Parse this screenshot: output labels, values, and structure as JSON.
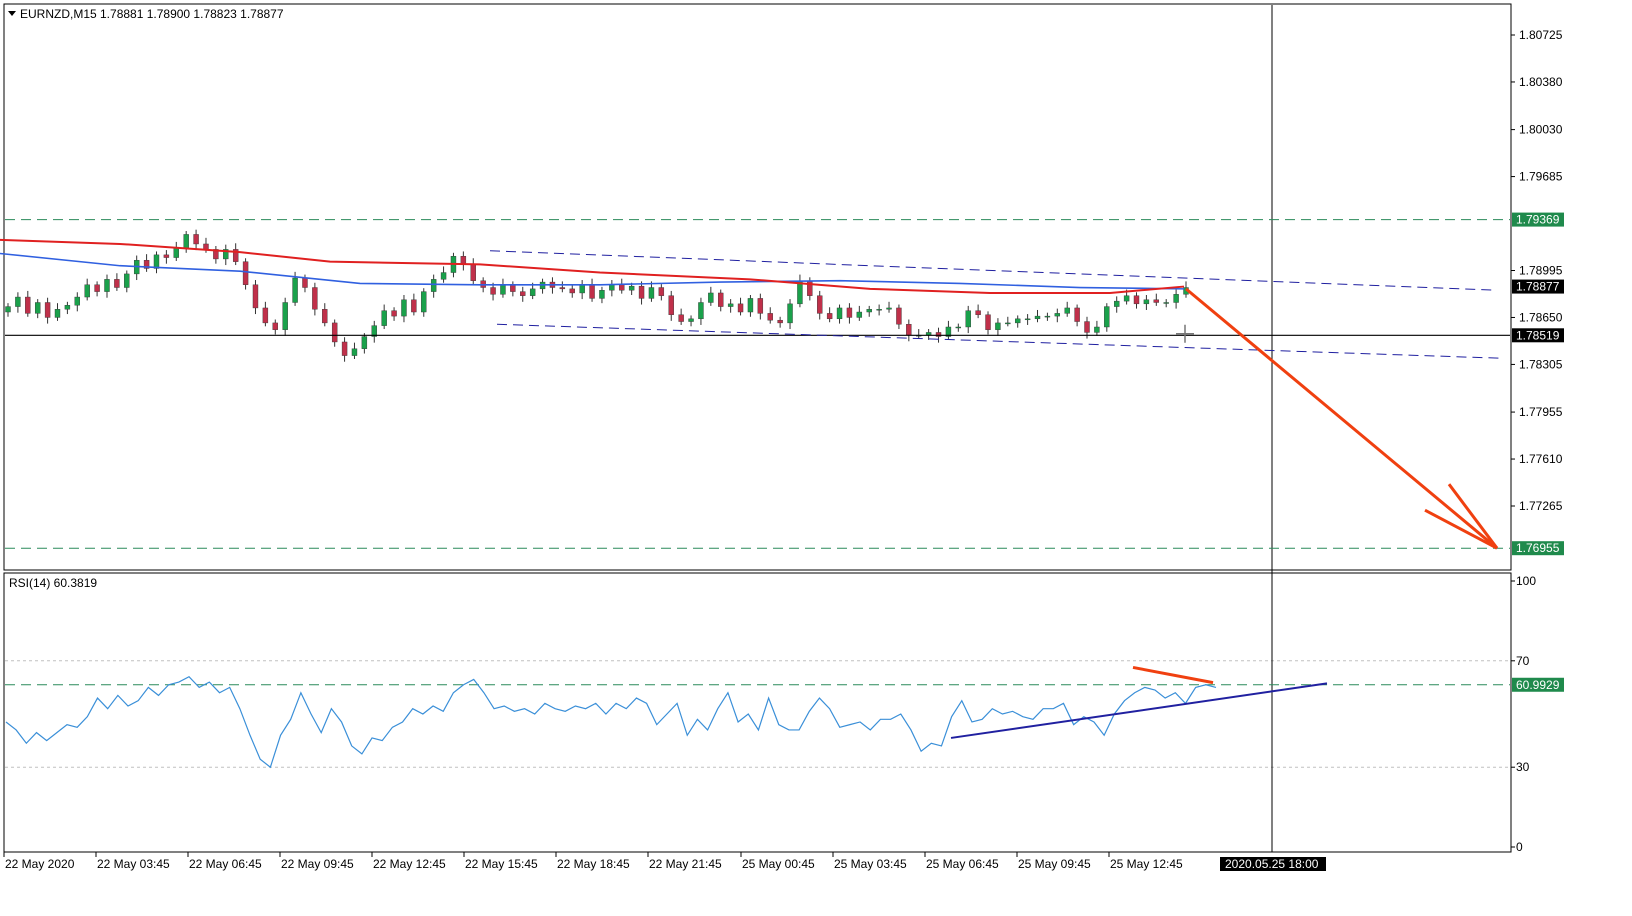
{
  "window": {
    "symbol_header": "EURNZD,M15  1.78881 1.78900 1.78823 1.78877",
    "rsi_header": "RSI(14) 60.3819"
  },
  "colors": {
    "bull_body": "#1aa14b",
    "bear_body": "#c0304a",
    "wick": "#333333",
    "ma_fast": "#e02020",
    "ma_slow": "#3060e0",
    "rsi_line": "#3a8fd8",
    "trend_blue": "#2020a0",
    "arrow": "#f04010",
    "level_green": "#2a8a5a",
    "tag_green_bg": "#1f8a4c",
    "tag_black_bg": "#000000",
    "grid": "#c8c8c8"
  },
  "chart_data": [
    {
      "type": "candlestick",
      "title": "EURNZD,M15",
      "ohlc_last": {
        "open": 1.78881,
        "high": 1.789,
        "low": 1.78823,
        "close": 1.78877
      },
      "y_ticks": [
        1.80725,
        1.8038,
        1.8003,
        1.79685,
        1.78995,
        1.7865,
        1.78305,
        1.77955,
        1.7761,
        1.77265
      ],
      "ylim": [
        1.7676,
        1.81
      ],
      "x_ticks": [
        "22 May 2020",
        "22 May 03:45",
        "22 May 06:45",
        "22 May 09:45",
        "22 May 12:45",
        "22 May 15:45",
        "22 May 18:45",
        "22 May 21:45",
        "25 May 00:45",
        "25 May 03:45",
        "25 May 06:45",
        "25 May 09:45",
        "25 May 12:45"
      ],
      "crosshair_time": "2020.05.25 18:00",
      "levels": [
        {
          "label": "1.79369",
          "value": 1.79369,
          "style": "dashed-green"
        },
        {
          "label": "1.78877",
          "value": 1.78877,
          "style": "price-tag"
        },
        {
          "label": "1.78519",
          "value": 1.78519,
          "style": "solid-black"
        },
        {
          "label": "1.76955",
          "value": 1.76955,
          "style": "dashed-green"
        }
      ],
      "closes": [
        1.7873,
        1.788,
        1.7868,
        1.7876,
        1.7865,
        1.7871,
        1.7874,
        1.788,
        1.7889,
        1.7884,
        1.7893,
        1.7887,
        1.7897,
        1.7907,
        1.7901,
        1.7911,
        1.7909,
        1.7916,
        1.7926,
        1.7919,
        1.7915,
        1.7908,
        1.7915,
        1.7906,
        1.7889,
        1.7872,
        1.7861,
        1.7856,
        1.7876,
        1.7894,
        1.7887,
        1.7871,
        1.7861,
        1.7847,
        1.7837,
        1.7842,
        1.7851,
        1.7859,
        1.787,
        1.7866,
        1.7878,
        1.7869,
        1.7884,
        1.7893,
        1.7898,
        1.791,
        1.7904,
        1.7892,
        1.7887,
        1.7882,
        1.7889,
        1.7884,
        1.7881,
        1.7886,
        1.7891,
        1.7887,
        1.7886,
        1.7883,
        1.7889,
        1.7879,
        1.7885,
        1.7889,
        1.7885,
        1.7888,
        1.7879,
        1.7887,
        1.7881,
        1.7867,
        1.7862,
        1.7864,
        1.7876,
        1.7883,
        1.7873,
        1.7875,
        1.7869,
        1.7879,
        1.7868,
        1.7863,
        1.7861,
        1.7875,
        1.7892,
        1.7881,
        1.7868,
        1.7864,
        1.7872,
        1.7865,
        1.7869,
        1.7871,
        1.7871,
        1.7872,
        1.786,
        1.7852,
        1.7852,
        1.7854,
        1.7851,
        1.7858,
        1.7858,
        1.787,
        1.7867,
        1.7856,
        1.7861,
        1.7861,
        1.7864,
        1.7864,
        1.7866,
        1.7866,
        1.7868,
        1.7872,
        1.7862,
        1.7854,
        1.7858,
        1.7873,
        1.7877,
        1.7881,
        1.7875,
        1.7878,
        1.7876,
        1.7876,
        1.7882,
        1.7887
      ],
      "ma_fast_line": [
        [
          0,
          1.7922
        ],
        [
          120,
          1.7919
        ],
        [
          240,
          1.7913
        ],
        [
          330,
          1.7906
        ],
        [
          480,
          1.7904
        ],
        [
          600,
          1.7898
        ],
        [
          750,
          1.7893
        ],
        [
          870,
          1.7886
        ],
        [
          990,
          1.7883
        ],
        [
          1110,
          1.7883
        ],
        [
          1184,
          1.78877
        ]
      ],
      "ma_slow_line": [
        [
          0,
          1.7912
        ],
        [
          120,
          1.7903
        ],
        [
          240,
          1.7899
        ],
        [
          360,
          1.789
        ],
        [
          480,
          1.7889
        ],
        [
          600,
          1.7889
        ],
        [
          720,
          1.7891
        ],
        [
          840,
          1.7892
        ],
        [
          960,
          1.789
        ],
        [
          1080,
          1.7887
        ],
        [
          1184,
          1.7886
        ]
      ],
      "channel_upper": [
        [
          490,
          1.7914
        ],
        [
          1496,
          1.7885
        ]
      ],
      "channel_lower": [
        [
          497,
          1.786
        ],
        [
          1503,
          1.7835
        ]
      ],
      "forecast_arrow": {
        "from": [
          1186,
          1.7886
        ],
        "to": [
          1497,
          1.76955
        ]
      },
      "cursor": [
        1185,
        1.7853
      ]
    },
    {
      "type": "line",
      "title": "RSI(14) 60.3819",
      "series": [
        {
          "name": "RSI(14)",
          "values": [
            47,
            44,
            39,
            43,
            40,
            43,
            46,
            45,
            49,
            56,
            52,
            57,
            53,
            55,
            60,
            57,
            61,
            62,
            64,
            60,
            62,
            58,
            60,
            52,
            42,
            33,
            30,
            42,
            48,
            58,
            50,
            43,
            52,
            47,
            38,
            35,
            41,
            40,
            45,
            47,
            52,
            50,
            53,
            51,
            58,
            61,
            63,
            58,
            52,
            53,
            51,
            52,
            50,
            54,
            52,
            51,
            53,
            52,
            54,
            50,
            54,
            52,
            56,
            54,
            46,
            50,
            54,
            42,
            48,
            44,
            52,
            58,
            47,
            50,
            44,
            56,
            46,
            44,
            44,
            51,
            56,
            52,
            45,
            46,
            47,
            44,
            48,
            48,
            50,
            44,
            36,
            39,
            38,
            49,
            55,
            47,
            48,
            52,
            50,
            51,
            49,
            48,
            52,
            52,
            54,
            46,
            49,
            47,
            42,
            50,
            55,
            58,
            60,
            59,
            56,
            58,
            54,
            60,
            61,
            60
          ]
        }
      ],
      "y_ticks": [
        100,
        70,
        30,
        0
      ],
      "ylim": [
        0,
        100
      ],
      "levels": [
        {
          "label": "60.9929",
          "value": 60.9929
        }
      ],
      "trend_blue": [
        [
          951,
          41
        ],
        [
          1327,
          61.5
        ]
      ],
      "trend_red": [
        [
          1133,
          67.5
        ],
        [
          1213,
          61.8
        ]
      ]
    }
  ]
}
